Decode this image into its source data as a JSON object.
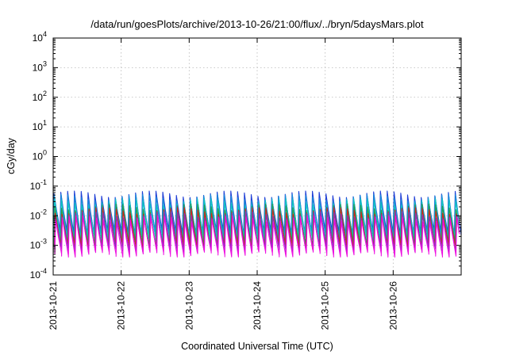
{
  "chart_data": {
    "type": "line",
    "title": "/data/run/goesPlots/archive/2013-10-26/21:00/flux/../bryn/5daysMars.plot",
    "xlabel": "Coordinated Universal Time (UTC)",
    "ylabel": "cGy/day",
    "yscale": "log",
    "ylim": [
      0.0001,
      10000
    ],
    "xlim_days": [
      0,
      6
    ],
    "x_tick_labels": [
      "2013-10-21",
      "2013-10-22",
      "2013-10-23",
      "2013-10-24",
      "2013-10-25",
      "2013-10-26"
    ],
    "y_ticks": [
      {
        "base": "10",
        "exp": "4"
      },
      {
        "base": "10",
        "exp": "3"
      },
      {
        "base": "10",
        "exp": "2"
      },
      {
        "base": "10",
        "exp": "1"
      },
      {
        "base": "10",
        "exp": "0"
      },
      {
        "base": "10",
        "exp": "-1"
      },
      {
        "base": "10",
        "exp": "-2"
      },
      {
        "base": "10",
        "exp": "-3"
      },
      {
        "base": "10",
        "exp": "-4"
      }
    ],
    "grid": true,
    "legend": "none",
    "sawtooth_period_hours": 2.4,
    "series": [
      {
        "color": "#1f3fd6",
        "peak": 0.055,
        "trough": 0.0028
      },
      {
        "color": "#1a8fd9",
        "peak": 0.042,
        "trough": 0.0022
      },
      {
        "color": "#12c8c0",
        "peak": 0.03,
        "trough": 0.0016
      },
      {
        "color": "#2a9a4a",
        "peak": 0.02,
        "trough": 0.0011
      },
      {
        "color": "#d42020",
        "peak": 0.015,
        "trough": 0.0009
      },
      {
        "color": "#8a2fc8",
        "peak": 0.011,
        "trough": 0.0007
      },
      {
        "color": "#ee10e0",
        "peak": 0.008,
        "trough": 0.0005
      }
    ]
  }
}
